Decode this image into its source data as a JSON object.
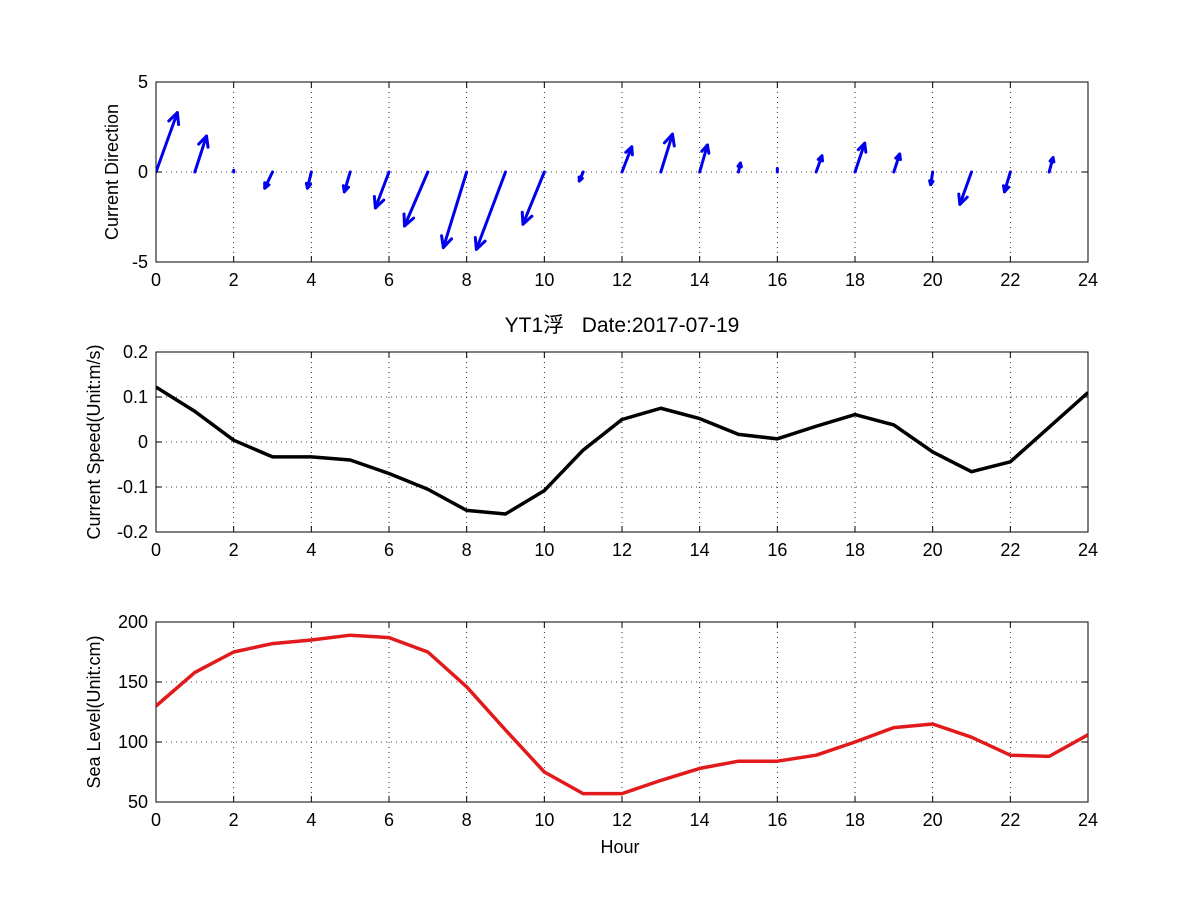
{
  "figure": {
    "title": "YT1浮   Date:2017-07-19",
    "title_color": "#e31a1c"
  },
  "chart_data": [
    {
      "type": "quiver",
      "ylabel": "Current Direction",
      "xlim": [
        0,
        24
      ],
      "ylim": [
        -5,
        5
      ],
      "x_ticks": [
        0,
        2,
        4,
        6,
        8,
        10,
        12,
        14,
        16,
        18,
        20,
        22,
        24
      ],
      "y_ticks": [
        -5,
        0,
        5
      ],
      "grid": true,
      "color": "#0000ee",
      "vectors": [
        {
          "x": 0,
          "u": 0.55,
          "v": 3.3
        },
        {
          "x": 1,
          "u": 0.3,
          "v": 2.0
        },
        {
          "x": 2,
          "u": 0.0,
          "v": 0.1
        },
        {
          "x": 3,
          "u": -0.2,
          "v": -0.9
        },
        {
          "x": 4,
          "u": -0.1,
          "v": -0.9
        },
        {
          "x": 5,
          "u": -0.15,
          "v": -1.1
        },
        {
          "x": 6,
          "u": -0.35,
          "v": -2.0
        },
        {
          "x": 7,
          "u": -0.6,
          "v": -3.0
        },
        {
          "x": 8,
          "u": -0.6,
          "v": -4.2
        },
        {
          "x": 9,
          "u": -0.75,
          "v": -4.3
        },
        {
          "x": 10,
          "u": -0.55,
          "v": -2.9
        },
        {
          "x": 11,
          "u": -0.1,
          "v": -0.5
        },
        {
          "x": 12,
          "u": 0.25,
          "v": 1.4
        },
        {
          "x": 13,
          "u": 0.3,
          "v": 2.1
        },
        {
          "x": 14,
          "u": 0.2,
          "v": 1.5
        },
        {
          "x": 15,
          "u": 0.05,
          "v": 0.5
        },
        {
          "x": 16,
          "u": 0.0,
          "v": 0.2
        },
        {
          "x": 17,
          "u": 0.15,
          "v": 0.9
        },
        {
          "x": 18,
          "u": 0.25,
          "v": 1.6
        },
        {
          "x": 19,
          "u": 0.15,
          "v": 1.0
        },
        {
          "x": 20,
          "u": -0.05,
          "v": -0.7
        },
        {
          "x": 21,
          "u": -0.3,
          "v": -1.8
        },
        {
          "x": 22,
          "u": -0.15,
          "v": -1.1
        },
        {
          "x": 23,
          "u": 0.1,
          "v": 0.8
        }
      ]
    },
    {
      "type": "line",
      "ylabel": "Current Speed(Unit:m/s)",
      "xlim": [
        0,
        24
      ],
      "ylim": [
        -0.2,
        0.2
      ],
      "x_ticks": [
        0,
        2,
        4,
        6,
        8,
        10,
        12,
        14,
        16,
        18,
        20,
        22,
        24
      ],
      "y_ticks": [
        -0.2,
        -0.1,
        0,
        0.1,
        0.2
      ],
      "y_tick_labels": [
        "-0.2",
        "-0.1",
        "0",
        "0.1",
        "0.2"
      ],
      "grid": true,
      "color": "#000000",
      "x": [
        0,
        1,
        2,
        3,
        4,
        5,
        6,
        7,
        8,
        9,
        10,
        11,
        12,
        13,
        14,
        15,
        16,
        17,
        18,
        19,
        20,
        21,
        22,
        23,
        24
      ],
      "values": [
        0.122,
        0.068,
        0.004,
        -0.033,
        -0.033,
        -0.04,
        -0.07,
        -0.105,
        -0.152,
        -0.16,
        -0.108,
        -0.018,
        0.05,
        0.075,
        0.052,
        0.017,
        0.007,
        0.035,
        0.061,
        0.038,
        -0.022,
        -0.066,
        -0.044,
        0.033,
        0.11
      ]
    },
    {
      "type": "line",
      "ylabel": "Sea Level(Unit:cm)",
      "xlabel": "Hour",
      "xlim": [
        0,
        24
      ],
      "ylim": [
        50,
        200
      ],
      "x_ticks": [
        0,
        2,
        4,
        6,
        8,
        10,
        12,
        14,
        16,
        18,
        20,
        22,
        24
      ],
      "y_ticks": [
        50,
        100,
        150,
        200
      ],
      "grid": true,
      "color": "#e31a1c",
      "x": [
        0,
        1,
        2,
        3,
        4,
        5,
        6,
        7,
        8,
        9,
        10,
        11,
        12,
        13,
        14,
        15,
        16,
        17,
        18,
        19,
        20,
        21,
        22,
        23,
        24
      ],
      "values": [
        130,
        158,
        175,
        182,
        185,
        189,
        187,
        175,
        146,
        110,
        75,
        57,
        57,
        68,
        78,
        84,
        84,
        89,
        100,
        112,
        115,
        104,
        89,
        88,
        106
      ]
    }
  ]
}
